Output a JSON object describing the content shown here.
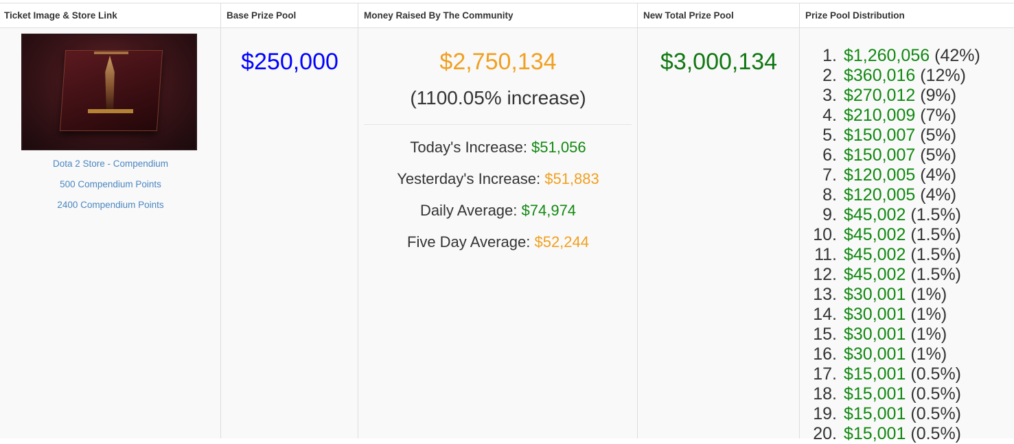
{
  "headers": {
    "ticket": "Ticket Image & Store Link",
    "base": "Base Prize Pool",
    "raised": "Money Raised By The Community",
    "total": "New Total Prize Pool",
    "distribution": "Prize Pool Distribution"
  },
  "store_links": [
    "Dota 2 Store - Compendium",
    "500 Compendium Points",
    "2400 Compendium Points"
  ],
  "base_prize_pool": "$250,000",
  "raised": {
    "amount": "$2,750,134",
    "increase": "(1100.05% increase)",
    "stats": [
      {
        "label": "Today's Increase: ",
        "value": "$51,056",
        "color": "green"
      },
      {
        "label": "Yesterday's Increase: ",
        "value": "$51,883",
        "color": "orange"
      },
      {
        "label": "Daily Average: ",
        "value": "$74,974",
        "color": "green"
      },
      {
        "label": "Five Day Average: ",
        "value": "$52,244",
        "color": "orange"
      }
    ]
  },
  "new_total_prize_pool": "$3,000,134",
  "distribution": [
    {
      "rank": "1.",
      "amount": "$1,260,056",
      "pct": "(42%)"
    },
    {
      "rank": "2.",
      "amount": "$360,016",
      "pct": "(12%)"
    },
    {
      "rank": "3.",
      "amount": "$270,012",
      "pct": "(9%)"
    },
    {
      "rank": "4.",
      "amount": "$210,009",
      "pct": "(7%)"
    },
    {
      "rank": "5.",
      "amount": "$150,007",
      "pct": "(5%)"
    },
    {
      "rank": "6.",
      "amount": "$150,007",
      "pct": "(5%)"
    },
    {
      "rank": "7.",
      "amount": "$120,005",
      "pct": "(4%)"
    },
    {
      "rank": "8.",
      "amount": "$120,005",
      "pct": "(4%)"
    },
    {
      "rank": "9.",
      "amount": "$45,002",
      "pct": "(1.5%)"
    },
    {
      "rank": "10.",
      "amount": "$45,002",
      "pct": "(1.5%)"
    },
    {
      "rank": "11.",
      "amount": "$45,002",
      "pct": "(1.5%)"
    },
    {
      "rank": "12.",
      "amount": "$45,002",
      "pct": "(1.5%)"
    },
    {
      "rank": "13.",
      "amount": "$30,001",
      "pct": "(1%)"
    },
    {
      "rank": "14.",
      "amount": "$30,001",
      "pct": "(1%)"
    },
    {
      "rank": "15.",
      "amount": "$30,001",
      "pct": "(1%)"
    },
    {
      "rank": "16.",
      "amount": "$30,001",
      "pct": "(1%)"
    },
    {
      "rank": "17.",
      "amount": "$15,001",
      "pct": "(0.5%)"
    },
    {
      "rank": "18.",
      "amount": "$15,001",
      "pct": "(0.5%)"
    },
    {
      "rank": "19.",
      "amount": "$15,001",
      "pct": "(0.5%)"
    },
    {
      "rank": "20.",
      "amount": "$15,001",
      "pct": "(0.5%)"
    }
  ]
}
